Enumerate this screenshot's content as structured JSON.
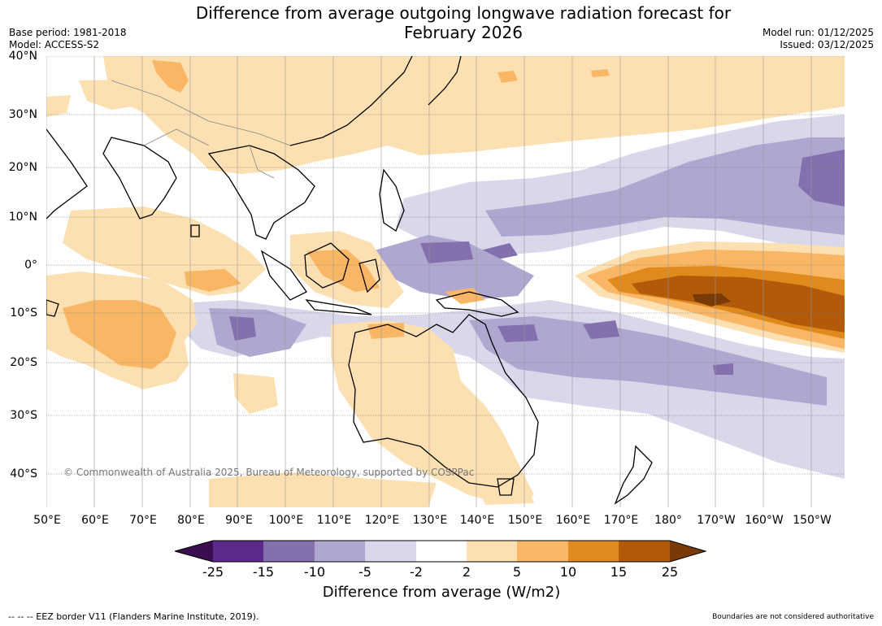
{
  "title_line1": "Difference from average outgoing longwave radiation forecast for",
  "title_line2": "February 2026",
  "base_period": "Base period: 1981-2018",
  "model": "Model: ACCESS-S2",
  "model_run": "Model run: 01/12/2025",
  "issued": "Issued: 03/12/2025",
  "copyright": "© Commonwealth of Australia 2025, Bureau of Meteorology, supported by COSPPac",
  "eez_note": "--  --  -- EEZ border V11 (Flanders Marine Institute, 2019).",
  "boundary_note": "Boundaries are not considered authoritative",
  "latitude_labels": [
    "40°N",
    "30°N",
    "20°N",
    "10°N",
    "0°",
    "10°S",
    "20°S",
    "30°S",
    "40°S"
  ],
  "longitude_labels": [
    "50°E",
    "60°E",
    "70°E",
    "80°E",
    "90°E",
    "100°E",
    "110°E",
    "120°E",
    "130°E",
    "140°E",
    "150°E",
    "160°E",
    "170°E",
    "180°",
    "170°W",
    "160°W",
    "150°W"
  ],
  "colorbar": {
    "label": "Difference from average (W/m2)",
    "ticks": [
      "-25",
      "-15",
      "-10",
      "-5",
      "-2",
      "2",
      "5",
      "10",
      "15",
      "25"
    ],
    "colors": [
      "#3b0f4f",
      "#5c2a8a",
      "#8370ad",
      "#b0a7d0",
      "#d8d8ea",
      "#ffffff",
      "#fde0b2",
      "#f9b665",
      "#e08a1e",
      "#b05a0a",
      "#7a3a06"
    ]
  },
  "chart_data": {
    "type": "heatmap",
    "title": "Difference from average outgoing longwave radiation forecast for February 2026",
    "units": "W/m2",
    "levels": [
      -25,
      -15,
      -10,
      -5,
      -2,
      2,
      5,
      10,
      15,
      25
    ],
    "lat_range": [
      -45,
      40
    ],
    "lon_range": [
      50,
      207
    ],
    "regions": [
      {
        "name": "central Pacific equatorial positive anomaly",
        "category": "15 to 25 and above 25 (center)"
      },
      {
        "name": "western Indian Ocean south of equator",
        "category": "5 to 10"
      },
      {
        "name": "Maritime Continent / Borneo",
        "category": "5 to 10"
      },
      {
        "name": "south China and Tibet",
        "category": "2 to 5"
      },
      {
        "name": "north-west Pacific 20N",
        "category": "-10 to -15"
      },
      {
        "name": "Coral Sea / SPCZ",
        "category": "-5 to -10"
      },
      {
        "name": "eastern Indian Ocean 10S",
        "category": "-5 to -10"
      }
    ]
  }
}
